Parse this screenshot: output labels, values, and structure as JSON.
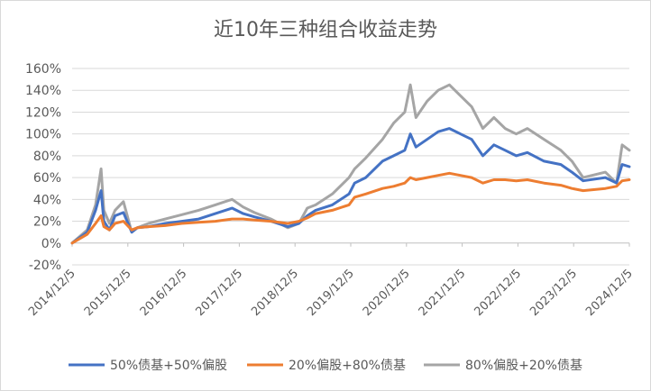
{
  "chart_data": {
    "type": "line",
    "title": "近10年三种组合收益走势",
    "xlabel": "",
    "ylabel": "",
    "ylim": [
      -0.2,
      1.6
    ],
    "y_ticks": [
      "-20%",
      "0%",
      "20%",
      "40%",
      "60%",
      "80%",
      "100%",
      "120%",
      "140%",
      "160%"
    ],
    "y_tick_values": [
      -0.2,
      0,
      0.2,
      0.4,
      0.6,
      0.8,
      1.0,
      1.2,
      1.4,
      1.6
    ],
    "x_ticks": [
      "2014/12/5",
      "2015/12/5",
      "2016/12/5",
      "2017/12/5",
      "2018/12/5",
      "2019/12/5",
      "2020/12/5",
      "2021/12/5",
      "2022/12/5",
      "2023/12/5",
      "2024/12/5"
    ],
    "grid": true,
    "legend": "bottom",
    "x": [
      2014.93,
      2015.2,
      2015.35,
      2015.45,
      2015.5,
      2015.6,
      2015.7,
      2015.85,
      2016.0,
      2016.1,
      2016.3,
      2016.6,
      2016.9,
      2017.2,
      2017.5,
      2017.8,
      2018.0,
      2018.2,
      2018.5,
      2018.8,
      2019.0,
      2019.15,
      2019.3,
      2019.6,
      2019.9,
      2020.0,
      2020.2,
      2020.5,
      2020.7,
      2020.9,
      2021.0,
      2021.1,
      2021.3,
      2021.5,
      2021.7,
      2021.9,
      2022.1,
      2022.3,
      2022.5,
      2022.7,
      2022.9,
      2023.1,
      2023.4,
      2023.7,
      2023.9,
      2024.1,
      2024.5,
      2024.7,
      2024.8,
      2024.93
    ],
    "series": [
      {
        "name": "50%债基+50%偏股",
        "color": "#4472C4",
        "values": [
          0,
          0.1,
          0.3,
          0.48,
          0.2,
          0.12,
          0.25,
          0.28,
          0.1,
          0.14,
          0.15,
          0.18,
          0.2,
          0.22,
          0.27,
          0.32,
          0.27,
          0.24,
          0.2,
          0.15,
          0.18,
          0.25,
          0.3,
          0.35,
          0.45,
          0.55,
          0.6,
          0.75,
          0.8,
          0.85,
          1.0,
          0.88,
          0.95,
          1.02,
          1.05,
          1.0,
          0.95,
          0.8,
          0.9,
          0.85,
          0.8,
          0.83,
          0.75,
          0.72,
          0.65,
          0.57,
          0.6,
          0.55,
          0.72,
          0.7
        ]
      },
      {
        "name": "20%偏股+80%债基",
        "color": "#ED7D31",
        "values": [
          0,
          0.08,
          0.18,
          0.25,
          0.15,
          0.12,
          0.18,
          0.2,
          0.12,
          0.14,
          0.15,
          0.16,
          0.18,
          0.19,
          0.2,
          0.22,
          0.22,
          0.21,
          0.2,
          0.18,
          0.2,
          0.23,
          0.27,
          0.3,
          0.35,
          0.42,
          0.45,
          0.5,
          0.52,
          0.55,
          0.6,
          0.58,
          0.6,
          0.62,
          0.64,
          0.62,
          0.6,
          0.55,
          0.58,
          0.58,
          0.57,
          0.58,
          0.55,
          0.53,
          0.5,
          0.48,
          0.5,
          0.52,
          0.57,
          0.58
        ]
      },
      {
        "name": "80%偏股+20%债基",
        "color": "#A5A5A5",
        "values": [
          0,
          0.12,
          0.35,
          0.68,
          0.3,
          0.18,
          0.3,
          0.38,
          0.1,
          0.14,
          0.18,
          0.22,
          0.26,
          0.3,
          0.35,
          0.4,
          0.33,
          0.28,
          0.22,
          0.14,
          0.18,
          0.32,
          0.35,
          0.45,
          0.6,
          0.68,
          0.78,
          0.95,
          1.1,
          1.2,
          1.45,
          1.15,
          1.3,
          1.4,
          1.45,
          1.35,
          1.25,
          1.05,
          1.15,
          1.05,
          1.0,
          1.05,
          0.95,
          0.85,
          0.75,
          0.6,
          0.65,
          0.55,
          0.9,
          0.85
        ]
      }
    ]
  }
}
